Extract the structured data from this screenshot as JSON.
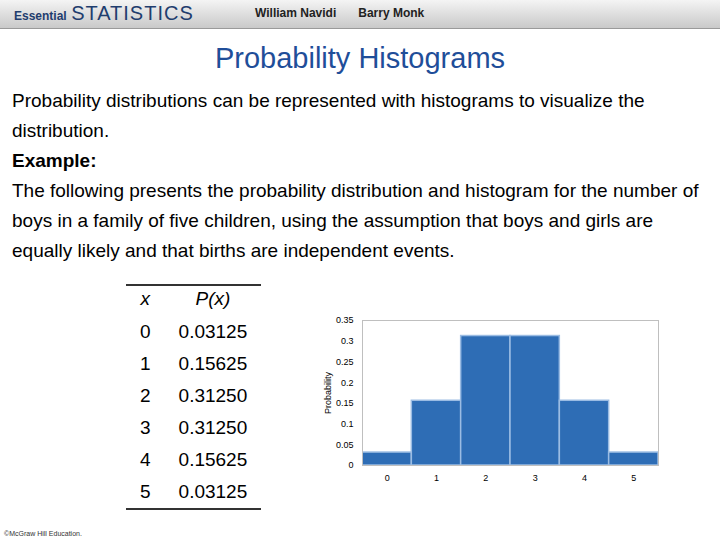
{
  "header": {
    "book": [
      "Essential",
      "STATISTICS"
    ],
    "authors": [
      "William Navidi",
      "Barry Monk"
    ]
  },
  "title": "Probability Histograms",
  "body": {
    "intro": "Probability distributions can be represented with histograms to visualize the distribution.",
    "example_heading": "Example:",
    "example_text": "The following presents the probability distribution and histogram for the number of boys in a family of five children, using the assumption that boys and girls are equally likely and that births are independent events."
  },
  "table": {
    "header": [
      "x",
      "P(x)"
    ],
    "rows": [
      [
        "0",
        "0.03125"
      ],
      [
        "1",
        "0.15625"
      ],
      [
        "2",
        "0.31250"
      ],
      [
        "3",
        "0.31250"
      ],
      [
        "4",
        "0.15625"
      ],
      [
        "5",
        "0.03125"
      ]
    ]
  },
  "chart_data": {
    "type": "histogram",
    "ylabel": "Probability",
    "bins": [
      -0.5,
      0.5,
      1.5,
      2.5,
      3.5,
      4.5,
      5.5
    ],
    "values": [
      0.03125,
      0.15625,
      0.3125,
      0.3125,
      0.15625,
      0.03125
    ],
    "color": "#2e6db5",
    "xlim": [
      -0.5,
      5.5
    ],
    "xticks": [
      0,
      1,
      2,
      3,
      4,
      5
    ],
    "ylim": [
      0,
      0.35
    ],
    "yticks": [
      0,
      0.05,
      0.1,
      0.15,
      0.2,
      0.25,
      0.3,
      0.35
    ],
    "grid": false
  },
  "footer": "©McGraw Hill Education."
}
